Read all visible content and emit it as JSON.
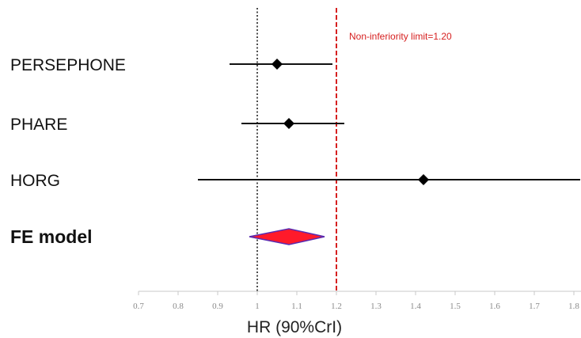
{
  "chart_data": {
    "type": "forest",
    "xlabel": "HR (90%CrI)",
    "xlim": [
      0.7,
      1.8
    ],
    "x_ticks": [
      "0.7",
      "0.8",
      "0.9",
      "1",
      "1.1",
      "1.2",
      "1.3",
      "1.4",
      "1.5",
      "1.6",
      "1.7",
      "1.8"
    ],
    "reference_line": 1.0,
    "limit_line": {
      "value": 1.2,
      "label": "Non-inferiority limit=1.20",
      "color": "#d62020"
    },
    "studies": [
      {
        "name": "PERSEPHONE",
        "hr": 1.05,
        "lower": 0.93,
        "upper": 1.19
      },
      {
        "name": "PHARE",
        "hr": 1.08,
        "lower": 0.96,
        "upper": 1.22
      },
      {
        "name": "HORG",
        "hr": 1.42,
        "lower": 0.85,
        "upper": 1.82
      }
    ],
    "pooled": {
      "name": "FE model",
      "hr": 1.08,
      "lower": 0.98,
      "upper": 1.17,
      "fill": "#ff1a2a",
      "stroke": "#5a2bb0"
    }
  }
}
